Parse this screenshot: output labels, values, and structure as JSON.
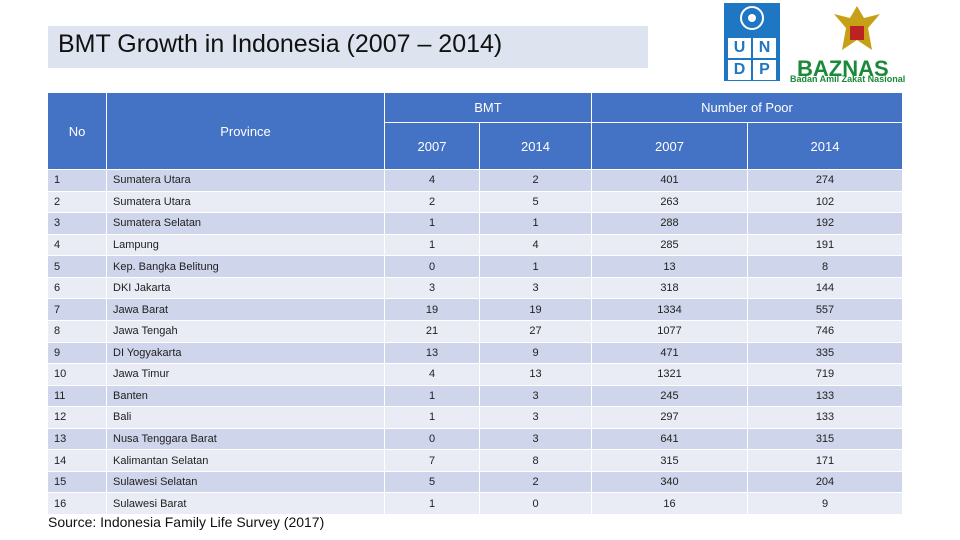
{
  "title": "BMT Growth in Indonesia (2007 – 2014)",
  "logos": {
    "undp": [
      "U",
      "N",
      "D",
      "P"
    ],
    "baznas": "BAZNAS",
    "baznas_full": "Badan Amil Zakat Nasional"
  },
  "table": {
    "header": {
      "no": "No",
      "province": "Province",
      "bmt": "BMT",
      "poor": "Number of Poor",
      "years": [
        "2007",
        "2014",
        "2007",
        "2014"
      ]
    },
    "rows": [
      [
        1,
        "Sumatera Utara",
        4,
        2,
        401,
        274
      ],
      [
        2,
        "Sumatera Utara",
        2,
        5,
        263,
        102
      ],
      [
        3,
        "Sumatera Selatan",
        1,
        1,
        288,
        192
      ],
      [
        4,
        "Lampung",
        1,
        4,
        285,
        191
      ],
      [
        5,
        "Kep. Bangka Belitung",
        0,
        1,
        13,
        8
      ],
      [
        6,
        "DKI Jakarta",
        3,
        3,
        318,
        144
      ],
      [
        7,
        "Jawa Barat",
        19,
        19,
        1334,
        557
      ],
      [
        8,
        "Jawa Tengah",
        21,
        27,
        1077,
        746
      ],
      [
        9,
        "DI Yogyakarta",
        13,
        9,
        471,
        335
      ],
      [
        10,
        "Jawa Timur",
        4,
        13,
        1321,
        719
      ],
      [
        11,
        "Banten",
        1,
        3,
        245,
        133
      ],
      [
        12,
        "Bali",
        1,
        3,
        297,
        133
      ],
      [
        13,
        "Nusa Tenggara Barat",
        0,
        3,
        641,
        315
      ],
      [
        14,
        "Kalimantan Selatan",
        7,
        8,
        315,
        171
      ],
      [
        15,
        "Sulawesi Selatan",
        5,
        2,
        340,
        204
      ],
      [
        16,
        "Sulawesi Barat",
        1,
        0,
        16,
        9
      ]
    ]
  },
  "source": "Source: Indonesia Family Life Survey (2017)"
}
